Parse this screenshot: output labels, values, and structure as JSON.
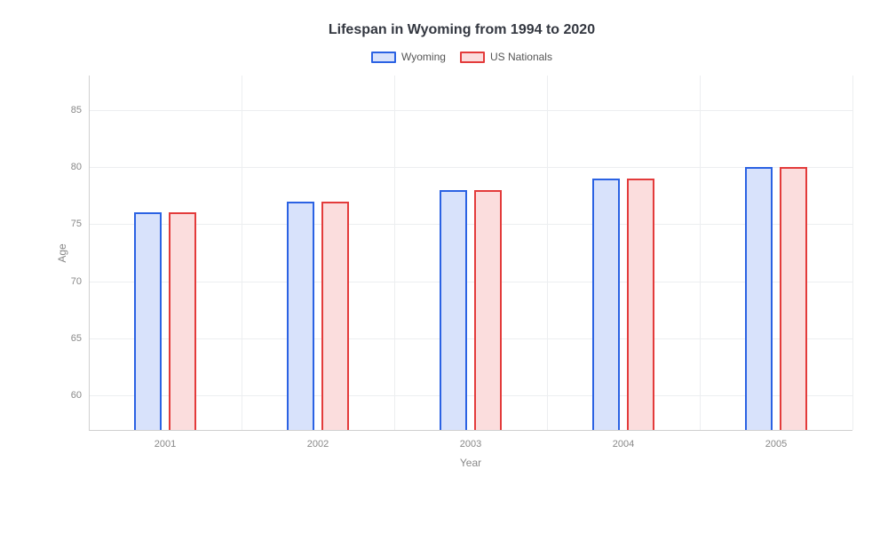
{
  "chart": {
    "type": "bar",
    "title": "Lifespan in Wyoming from 1994 to 2020",
    "title_fontsize": 16,
    "title_color": "#333740",
    "background_color": "#ffffff",
    "grid_color": "#eceef0",
    "axis_color": "#d0d0d0",
    "label_fontsize": 12,
    "tick_fontsize": 11,
    "tick_color": "#888888",
    "xlabel": "Year",
    "ylabel": "Age",
    "categories": [
      "2001",
      "2002",
      "2003",
      "2004",
      "2005"
    ],
    "ylim": [
      57,
      88
    ],
    "yticks": [
      60,
      65,
      70,
      75,
      80,
      85
    ],
    "bar_width_pct": 3.6,
    "bar_gap_pct": 1.0,
    "bar_border_width": 2,
    "legend_position": "top-center",
    "legend_swatch_width": 28,
    "legend_swatch_height": 13,
    "series": [
      {
        "name": "Wyoming",
        "border_color": "#2b62e3",
        "fill_color": "#d8e2fb",
        "values": [
          76,
          77,
          78,
          79,
          80
        ]
      },
      {
        "name": "US Nationals",
        "border_color": "#e33b3b",
        "fill_color": "#fbdddd",
        "values": [
          76,
          77,
          78,
          79,
          80
        ]
      }
    ]
  }
}
